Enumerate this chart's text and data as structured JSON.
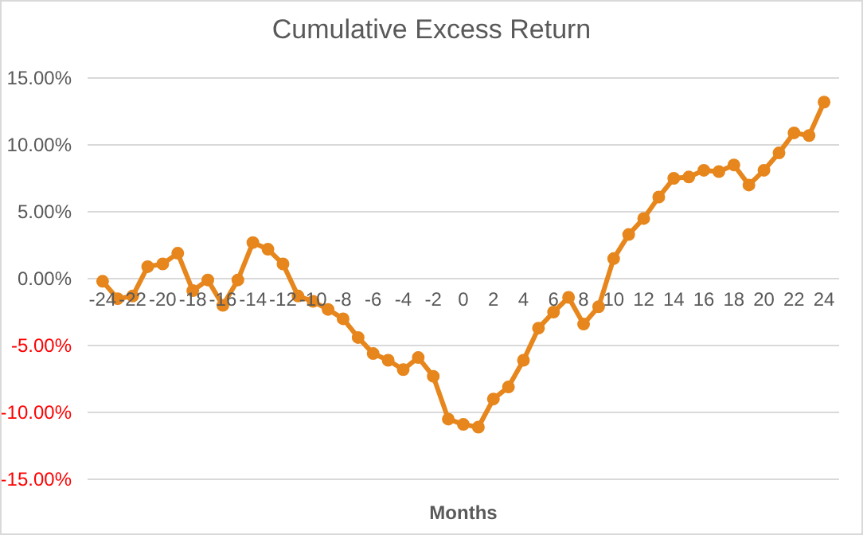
{
  "chart_data": {
    "type": "line",
    "title": "Cumulative Excess Return",
    "xlabel": "Months",
    "x": [
      -24,
      -23,
      -22,
      -21,
      -20,
      -19,
      -18,
      -17,
      -16,
      -15,
      -14,
      -13,
      -12,
      -11,
      -10,
      -9,
      -8,
      -7,
      -6,
      -5,
      -4,
      -3,
      -2,
      -1,
      0,
      1,
      2,
      3,
      4,
      5,
      6,
      7,
      8,
      9,
      10,
      11,
      12,
      13,
      14,
      15,
      16,
      17,
      18,
      19,
      20,
      21,
      22,
      23,
      24
    ],
    "series": [
      {
        "color": "#e6861c",
        "values": [
          -0.2,
          -1.5,
          -1.3,
          0.9,
          1.1,
          1.9,
          -0.9,
          -0.1,
          -2.0,
          -0.1,
          2.7,
          2.2,
          1.1,
          -1.3,
          -1.7,
          -2.3,
          -3.0,
          -4.4,
          -5.6,
          -6.1,
          -6.8,
          -5.9,
          -7.3,
          -10.5,
          -10.9,
          -11.1,
          -9.0,
          -8.1,
          -6.1,
          -3.7,
          -2.5,
          -1.4,
          -3.4,
          -2.1,
          1.5,
          3.3,
          4.5,
          6.1,
          7.5,
          7.6,
          8.1,
          8.0,
          8.5,
          7.0,
          8.1,
          9.4,
          10.9,
          10.7,
          13.2
        ]
      }
    ],
    "xlim": [
      -25,
      25
    ],
    "xticks": [
      -24,
      -22,
      -20,
      -18,
      -16,
      -14,
      -12,
      -10,
      -8,
      -6,
      -4,
      -2,
      0,
      2,
      4,
      6,
      8,
      10,
      12,
      14,
      16,
      18,
      20,
      22,
      24
    ],
    "ylim": [
      -15,
      15
    ],
    "yticks": [
      {
        "value": -15,
        "label": "-15.00%"
      },
      {
        "value": -10,
        "label": "-10.00%"
      },
      {
        "value": -5,
        "label": "-5.00%"
      },
      {
        "value": 0,
        "label": "0.00%"
      },
      {
        "value": 5,
        "label": "5.00%"
      },
      {
        "value": 10,
        "label": "10.00%"
      },
      {
        "value": 15,
        "label": "15.00%"
      }
    ],
    "grid": "y",
    "marker": "circle",
    "line_style": "solid"
  }
}
